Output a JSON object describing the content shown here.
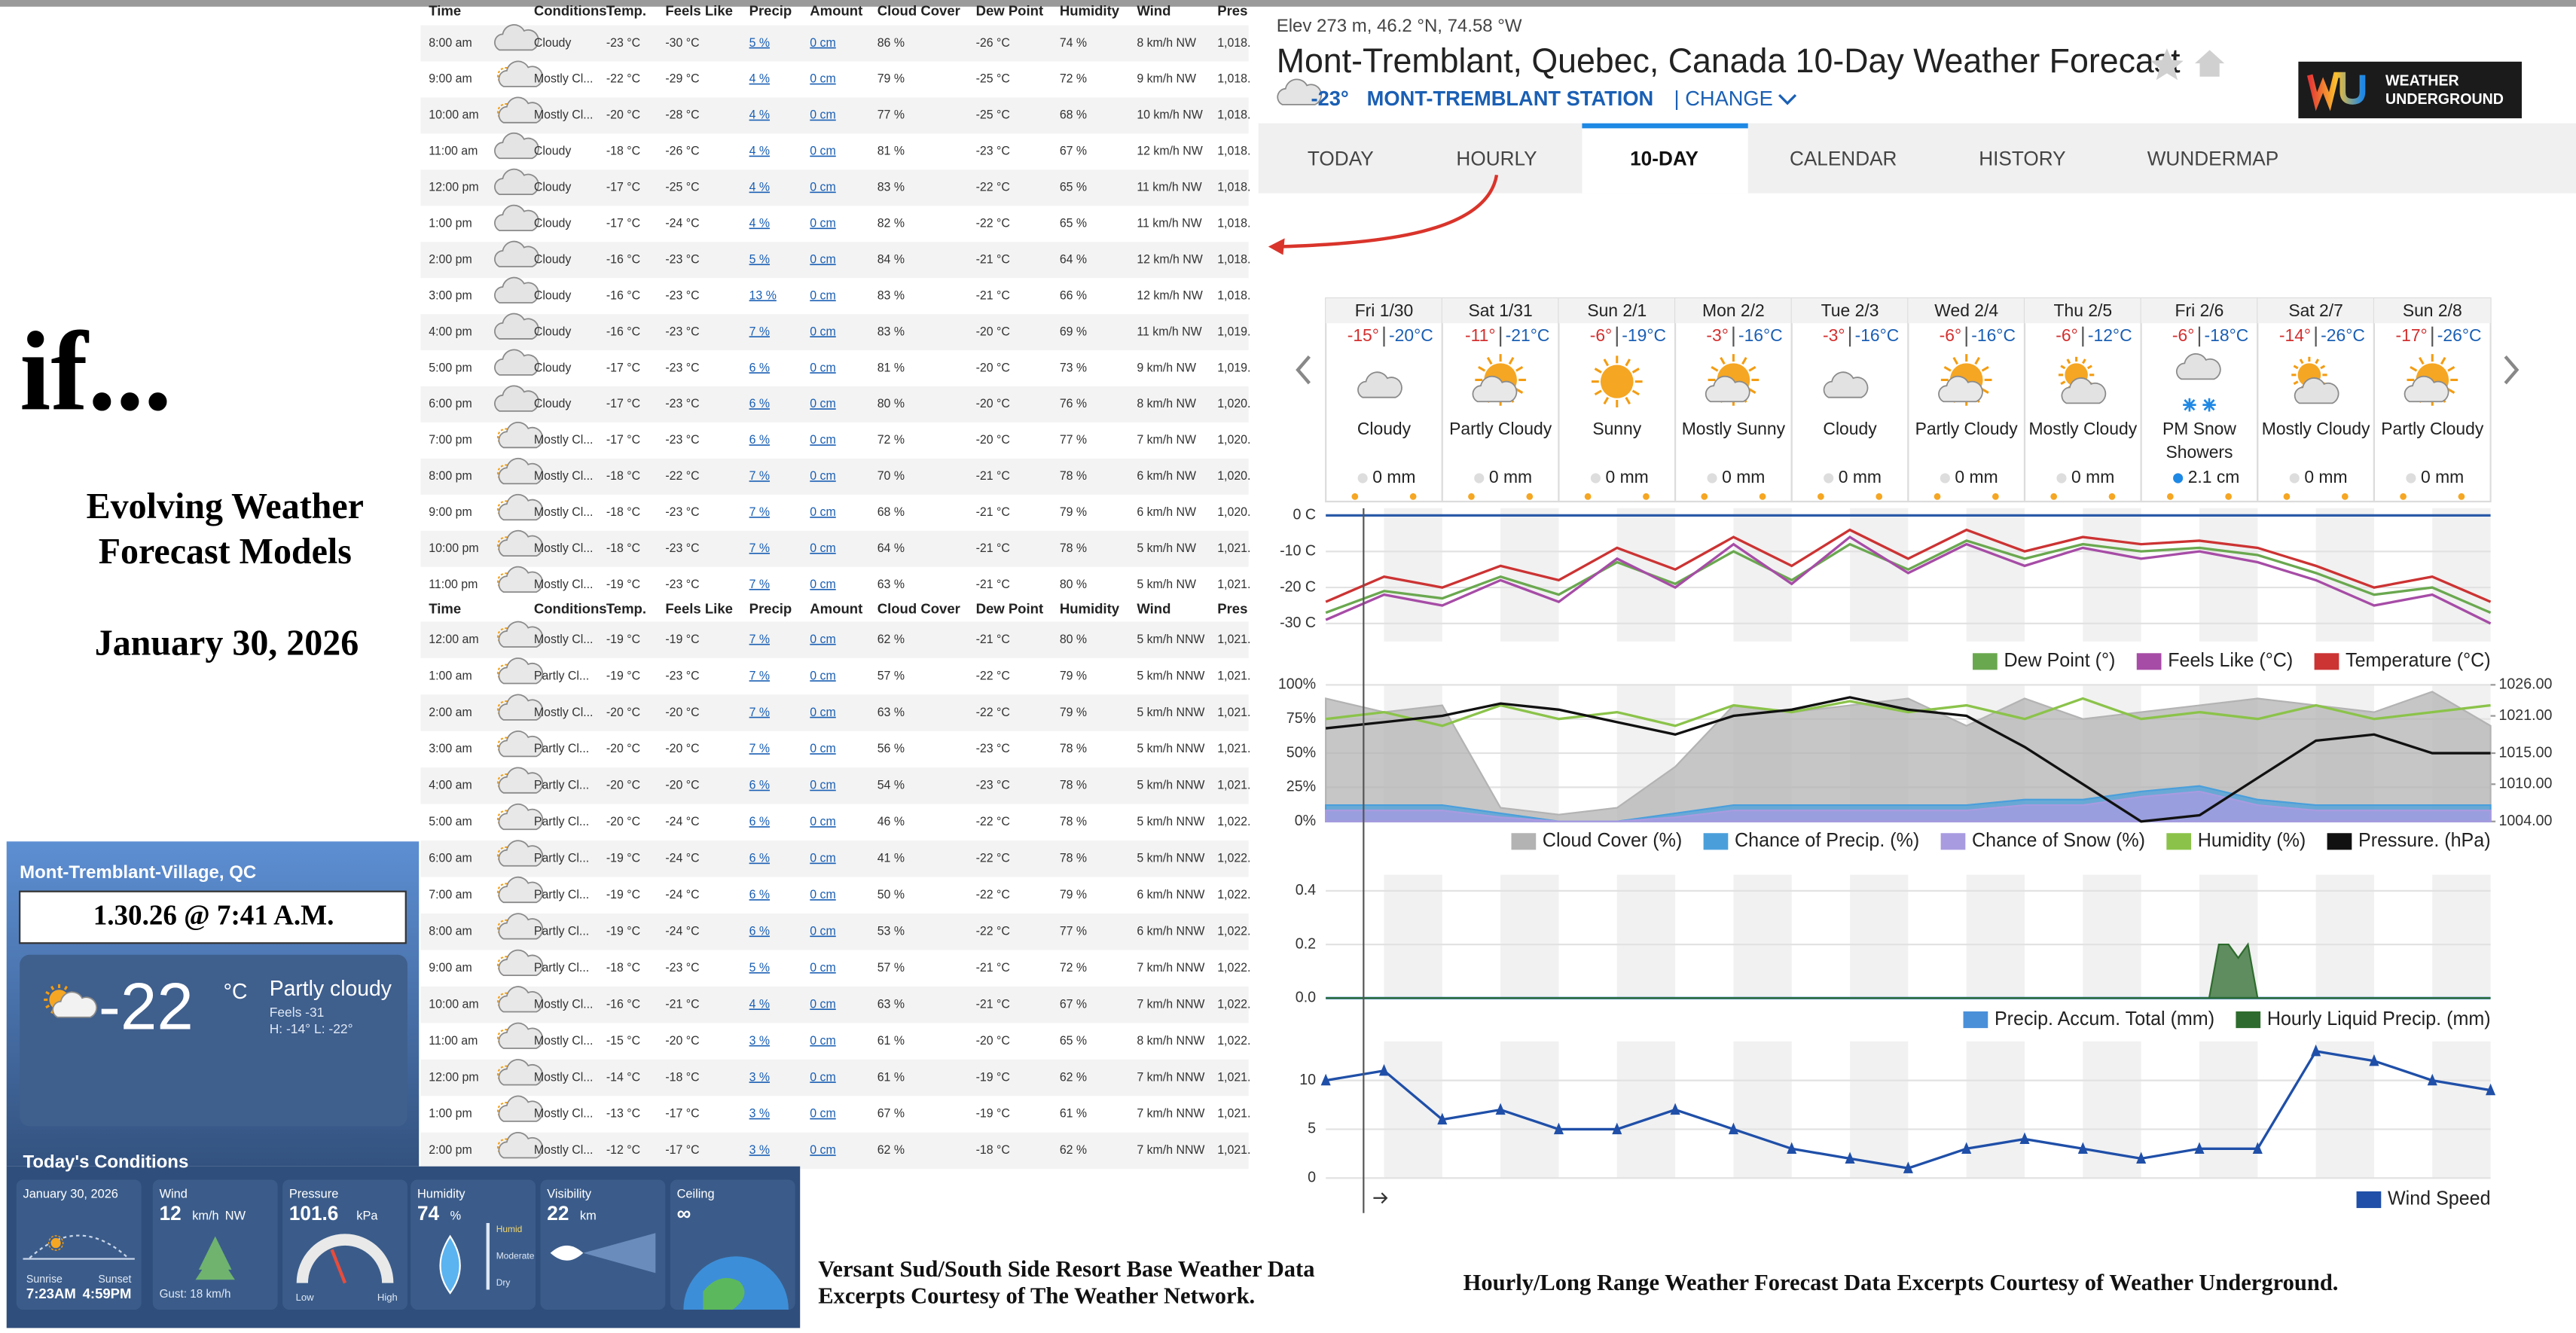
{
  "left": {
    "title": "if...",
    "subtitle": [
      "Evolving Weather",
      "Forecast Models"
    ],
    "date": "January 30, 2026"
  },
  "hourly_table": {
    "headers": [
      "Time",
      "Conditions",
      "Temp.",
      "Feels Like",
      "Precip",
      "Amount",
      "Cloud Cover",
      "Dew Point",
      "Humidity",
      "Wind",
      "Pres"
    ],
    "rows_1": [
      [
        "8:00 am",
        "Cloudy",
        "-23 °C",
        "-30 °C",
        "5 %",
        "0 cm",
        "86 %",
        "-26 °C",
        "74 %",
        "8 km/h NW",
        "1,018."
      ],
      [
        "9:00 am",
        "Mostly Cl...",
        "-22 °C",
        "-29 °C",
        "4 %",
        "0 cm",
        "79 %",
        "-25 °C",
        "72 %",
        "9 km/h NW",
        "1,018."
      ],
      [
        "10:00 am",
        "Mostly Cl...",
        "-20 °C",
        "-28 °C",
        "4 %",
        "0 cm",
        "77 %",
        "-25 °C",
        "68 %",
        "10 km/h NW",
        "1,018."
      ],
      [
        "11:00 am",
        "Cloudy",
        "-18 °C",
        "-26 °C",
        "4 %",
        "0 cm",
        "81 %",
        "-23 °C",
        "67 %",
        "12 km/h NW",
        "1,018."
      ],
      [
        "12:00 pm",
        "Cloudy",
        "-17 °C",
        "-25 °C",
        "4 %",
        "0 cm",
        "83 %",
        "-22 °C",
        "65 %",
        "11 km/h NW",
        "1,018."
      ],
      [
        "1:00 pm",
        "Cloudy",
        "-17 °C",
        "-24 °C",
        "4 %",
        "0 cm",
        "82 %",
        "-22 °C",
        "65 %",
        "11 km/h NW",
        "1,018."
      ],
      [
        "2:00 pm",
        "Cloudy",
        "-16 °C",
        "-23 °C",
        "5 %",
        "0 cm",
        "84 %",
        "-21 °C",
        "64 %",
        "12 km/h NW",
        "1,018."
      ],
      [
        "3:00 pm",
        "Cloudy",
        "-16 °C",
        "-23 °C",
        "13 %",
        "0 cm",
        "83 %",
        "-21 °C",
        "66 %",
        "12 km/h NW",
        "1,018."
      ],
      [
        "4:00 pm",
        "Cloudy",
        "-16 °C",
        "-23 °C",
        "7 %",
        "0 cm",
        "83 %",
        "-20 °C",
        "69 %",
        "11 km/h NW",
        "1,019."
      ],
      [
        "5:00 pm",
        "Cloudy",
        "-17 °C",
        "-23 °C",
        "6 %",
        "0 cm",
        "81 %",
        "-20 °C",
        "73 %",
        "9 km/h NW",
        "1,019."
      ],
      [
        "6:00 pm",
        "Cloudy",
        "-17 °C",
        "-23 °C",
        "6 %",
        "0 cm",
        "80 %",
        "-20 °C",
        "76 %",
        "8 km/h NW",
        "1,020."
      ],
      [
        "7:00 pm",
        "Mostly Cl...",
        "-17 °C",
        "-23 °C",
        "6 %",
        "0 cm",
        "72 %",
        "-20 °C",
        "77 %",
        "7 km/h NW",
        "1,020."
      ],
      [
        "8:00 pm",
        "Mostly Cl...",
        "-18 °C",
        "-22 °C",
        "7 %",
        "0 cm",
        "70 %",
        "-21 °C",
        "78 %",
        "6 km/h NW",
        "1,020."
      ],
      [
        "9:00 pm",
        "Mostly Cl...",
        "-18 °C",
        "-23 °C",
        "7 %",
        "0 cm",
        "68 %",
        "-21 °C",
        "79 %",
        "6 km/h NW",
        "1,020."
      ],
      [
        "10:00 pm",
        "Mostly Cl...",
        "-18 °C",
        "-23 °C",
        "7 %",
        "0 cm",
        "64 %",
        "-21 °C",
        "78 %",
        "5 km/h NW",
        "1,021."
      ],
      [
        "11:00 pm",
        "Mostly Cl...",
        "-19 °C",
        "-23 °C",
        "7 %",
        "0 cm",
        "63 %",
        "-21 °C",
        "80 %",
        "5 km/h NW",
        "1,021."
      ]
    ],
    "rows_2": [
      [
        "12:00 am",
        "Mostly Cl...",
        "-19 °C",
        "-19 °C",
        "7 %",
        "0 cm",
        "62 %",
        "-21 °C",
        "80 %",
        "5 km/h NNW",
        "1,021."
      ],
      [
        "1:00 am",
        "Partly Cl...",
        "-19 °C",
        "-23 °C",
        "7 %",
        "0 cm",
        "57 %",
        "-22 °C",
        "79 %",
        "5 km/h NNW",
        "1,021."
      ],
      [
        "2:00 am",
        "Mostly Cl...",
        "-20 °C",
        "-20 °C",
        "7 %",
        "0 cm",
        "63 %",
        "-22 °C",
        "79 %",
        "5 km/h NNW",
        "1,021."
      ],
      [
        "3:00 am",
        "Partly Cl...",
        "-20 °C",
        "-20 °C",
        "7 %",
        "0 cm",
        "56 %",
        "-23 °C",
        "78 %",
        "5 km/h NNW",
        "1,021."
      ],
      [
        "4:00 am",
        "Partly Cl...",
        "-20 °C",
        "-20 °C",
        "6 %",
        "0 cm",
        "54 %",
        "-23 °C",
        "78 %",
        "5 km/h NNW",
        "1,021."
      ],
      [
        "5:00 am",
        "Partly Cl...",
        "-20 °C",
        "-24 °C",
        "6 %",
        "0 cm",
        "46 %",
        "-22 °C",
        "78 %",
        "5 km/h NNW",
        "1,022."
      ],
      [
        "6:00 am",
        "Partly Cl...",
        "-19 °C",
        "-24 °C",
        "6 %",
        "0 cm",
        "41 %",
        "-22 °C",
        "78 %",
        "5 km/h NNW",
        "1,022."
      ],
      [
        "7:00 am",
        "Partly Cl...",
        "-19 °C",
        "-24 °C",
        "6 %",
        "0 cm",
        "50 %",
        "-22 °C",
        "79 %",
        "6 km/h NNW",
        "1,022."
      ],
      [
        "8:00 am",
        "Partly Cl...",
        "-19 °C",
        "-24 °C",
        "6 %",
        "0 cm",
        "53 %",
        "-22 °C",
        "77 %",
        "6 km/h NNW",
        "1,022."
      ],
      [
        "9:00 am",
        "Partly Cl...",
        "-18 °C",
        "-23 °C",
        "5 %",
        "0 cm",
        "57 %",
        "-21 °C",
        "72 %",
        "7 km/h NNW",
        "1,022."
      ],
      [
        "10:00 am",
        "Mostly Cl...",
        "-16 °C",
        "-21 °C",
        "4 %",
        "0 cm",
        "63 %",
        "-21 °C",
        "67 %",
        "7 km/h NNW",
        "1,022."
      ],
      [
        "11:00 am",
        "Mostly Cl...",
        "-15 °C",
        "-20 °C",
        "3 %",
        "0 cm",
        "61 %",
        "-20 °C",
        "65 %",
        "8 km/h NNW",
        "1,022."
      ],
      [
        "12:00 pm",
        "Mostly Cl...",
        "-14 °C",
        "-18 °C",
        "3 %",
        "0 cm",
        "61 %",
        "-19 °C",
        "62 %",
        "7 km/h NNW",
        "1,021."
      ],
      [
        "1:00 pm",
        "Mostly Cl...",
        "-13 °C",
        "-17 °C",
        "3 %",
        "0 cm",
        "67 %",
        "-19 °C",
        "61 %",
        "7 km/h NNW",
        "1,021."
      ],
      [
        "2:00 pm",
        "Mostly Cl...",
        "-12 °C",
        "-17 °C",
        "3 %",
        "0 cm",
        "62 %",
        "-18 °C",
        "62 %",
        "7 km/h NNW",
        "1,021."
      ]
    ]
  },
  "twn": {
    "location": "Mont-Tremblant-Village, QC",
    "timestamp": "1.30.26 @ 7:41 A.M.",
    "temp": "-22",
    "unit": "°C",
    "condition": "Partly cloudy",
    "feels": "Feels -31",
    "hilo": "H: -14°   L: -22°",
    "section": "Today's Conditions",
    "cards": [
      {
        "title": "January 30, 2026",
        "sunrise_label": "Sunrise",
        "sunrise": "7:23AM",
        "sunset_label": "Sunset",
        "sunset": "4:59PM"
      },
      {
        "title": "Wind",
        "value": "12",
        "unit": "km/h",
        "dir": "NW",
        "note": "Gust: 18 km/h"
      },
      {
        "title": "Pressure",
        "value": "101.6",
        "unit": "kPa",
        "low": "Low",
        "high": "High"
      },
      {
        "title": "Humidity",
        "value": "74",
        "unit": "%",
        "scale": [
          "Humid",
          "Moderate",
          "Dry"
        ]
      },
      {
        "title": "Visibility",
        "value": "22",
        "unit": "km"
      },
      {
        "title": "Ceiling",
        "value": "∞"
      }
    ]
  },
  "captions": {
    "twn": [
      "Versant Sud/South Side Resort Base Weather Data",
      "Excerpts Courtesy of The Weather Network."
    ],
    "wu": "Hourly/Long Range Weather Forecast Data Excerpts Courtesy of Weather Underground."
  },
  "wu": {
    "elevation": "Elev 273 m, 46.2 °N, 74.58 °W",
    "title": "Mont-Tremblant, Quebec, Canada 10-Day Weather Forecast",
    "current_temp": "-23°",
    "station": "MONT-TREMBLANT STATION",
    "change": "| CHANGE",
    "logo": [
      "WEATHER",
      "UNDERGROUND"
    ],
    "tabs": [
      "TODAY",
      "HOURLY",
      "10-DAY",
      "CALENDAR",
      "HISTORY",
      "WUNDERMAP"
    ],
    "active_tab": 2,
    "days": [
      {
        "date": "Fri 1/30",
        "high": "-15°",
        "low": "-20°C",
        "condition": "Cloudy",
        "precip": "0 mm"
      },
      {
        "date": "Sat 1/31",
        "high": "-11°",
        "low": "-21°C",
        "condition": "Partly Cloudy",
        "precip": "0 mm"
      },
      {
        "date": "Sun 2/1",
        "high": "-6°",
        "low": "-19°C",
        "condition": "Sunny",
        "precip": "0 mm"
      },
      {
        "date": "Mon 2/2",
        "high": "-3°",
        "low": "-16°C",
        "condition": "Mostly Sunny",
        "precip": "0 mm"
      },
      {
        "date": "Tue 2/3",
        "high": "-3°",
        "low": "-16°C",
        "condition": "Cloudy",
        "precip": "0 mm"
      },
      {
        "date": "Wed 2/4",
        "high": "-6°",
        "low": "-16°C",
        "condition": "Partly Cloudy",
        "precip": "0 mm"
      },
      {
        "date": "Thu 2/5",
        "high": "-6°",
        "low": "-12°C",
        "condition": "Mostly Cloudy",
        "precip": "0 mm"
      },
      {
        "date": "Fri 2/6",
        "high": "-6°",
        "low": "-18°C",
        "condition": "PM Snow Showers",
        "precip": "2.1 cm"
      },
      {
        "date": "Sat 2/7",
        "high": "-14°",
        "low": "-26°C",
        "condition": "Mostly Cloudy",
        "precip": "0 mm"
      },
      {
        "date": "Sun 2/8",
        "high": "-17°",
        "low": "-26°C",
        "condition": "Partly Cloudy",
        "precip": "0 mm"
      }
    ],
    "charts": [
      {
        "type": "line",
        "xlim": [
          0,
          240
        ],
        "ylim": [
          -35,
          2
        ],
        "yticks": [
          {
            "value": 0,
            "label": "0 C"
          },
          {
            "value": -10,
            "label": "-10 C"
          },
          {
            "value": -20,
            "label": "-20 C"
          },
          {
            "value": -30,
            "label": "-30 C"
          }
        ],
        "x": [
          0,
          12,
          24,
          36,
          48,
          60,
          72,
          84,
          96,
          108,
          120,
          132,
          144,
          156,
          168,
          180,
          192,
          204,
          216,
          228,
          240
        ],
        "series": [
          {
            "name": "Dew Point (°)",
            "color": "#6aa84f",
            "values": [
              -27,
              -21,
              -23,
              -17,
              -22,
              -13,
              -19,
              -10,
              -18,
              -8,
              -15,
              -7,
              -12,
              -8,
              -10,
              -9,
              -11,
              -16,
              -22,
              -20,
              -27
            ]
          },
          {
            "name": "Feels Like (°C)",
            "color": "#a64ca6",
            "values": [
              -29,
              -22,
              -25,
              -18,
              -24,
              -12,
              -20,
              -8,
              -19,
              -6,
              -16,
              -8,
              -14,
              -9,
              -12,
              -10,
              -13,
              -18,
              -25,
              -22,
              -30
            ]
          },
          {
            "name": "Temperature (°C)",
            "color": "#cc3333",
            "values": [
              -24,
              -17,
              -20,
              -14,
              -18,
              -9,
              -15,
              -6,
              -14,
              -4,
              -12,
              -4,
              -10,
              -6,
              -8,
              -7,
              -9,
              -14,
              -20,
              -17,
              -24
            ]
          }
        ]
      },
      {
        "type": "line",
        "xlim": [
          0,
          240
        ],
        "ylim": [
          0,
          100
        ],
        "yticks": [
          {
            "value": 100,
            "label": "100%"
          },
          {
            "value": 75,
            "label": "75%"
          },
          {
            "value": 50,
            "label": "50%"
          },
          {
            "value": 25,
            "label": "25%"
          },
          {
            "value": 0,
            "label": "0%"
          }
        ],
        "y2lim": [
          1004,
          1026
        ],
        "y2ticks": [
          {
            "value": 1026,
            "label": "1026.00"
          },
          {
            "value": 1021,
            "label": "1021.00"
          },
          {
            "value": 1015,
            "label": "1015.00"
          },
          {
            "value": 1010,
            "label": "1010.00"
          },
          {
            "value": 1004,
            "label": "1004.00"
          }
        ],
        "x": [
          0,
          12,
          24,
          36,
          48,
          60,
          72,
          84,
          96,
          108,
          120,
          132,
          144,
          156,
          168,
          180,
          192,
          204,
          216,
          228,
          240
        ],
        "series": [
          {
            "name": "Cloud Cover (%)",
            "color": "#b3b3b3",
            "style": "area",
            "values": [
              90,
              80,
              85,
              10,
              5,
              10,
              40,
              85,
              80,
              85,
              90,
              70,
              90,
              75,
              80,
              85,
              90,
              85,
              80,
              95,
              70
            ]
          },
          {
            "name": "Chance of Precip. (%)",
            "color": "#4a9fdb",
            "style": "area",
            "values": [
              12,
              12,
              12,
              6,
              0,
              0,
              6,
              12,
              12,
              12,
              12,
              12,
              16,
              16,
              22,
              26,
              16,
              12,
              12,
              12,
              12
            ]
          },
          {
            "name": "Chance of Snow (%)",
            "color": "#a99be0",
            "style": "area",
            "values": [
              8,
              8,
              8,
              3,
              0,
              0,
              3,
              8,
              8,
              8,
              8,
              8,
              12,
              12,
              18,
              22,
              12,
              8,
              8,
              8,
              8
            ]
          },
          {
            "name": "Humidity (%)",
            "color": "#8bc34a",
            "values": [
              75,
              80,
              70,
              85,
              75,
              80,
              70,
              85,
              80,
              88,
              80,
              85,
              75,
              90,
              75,
              80,
              75,
              85,
              75,
              80,
              85
            ]
          },
          {
            "name": "Pressure. (hPa)",
            "color": "#111111",
            "axis": "y2",
            "values": [
              1019,
              1020,
              1021,
              1023,
              1022,
              1020,
              1018,
              1021,
              1022,
              1024,
              1022,
              1021,
              1016,
              1010,
              1004,
              1005,
              1011,
              1017,
              1018,
              1015,
              1015
            ]
          }
        ]
      },
      {
        "type": "line",
        "xlim": [
          0,
          240
        ],
        "ylim": [
          0,
          0.46
        ],
        "yticks": [
          {
            "value": 0.4,
            "label": "0.4"
          },
          {
            "value": 0.2,
            "label": "0.2"
          },
          {
            "value": 0,
            "label": "0.0"
          }
        ],
        "series": [
          {
            "name": "Precip. Accum. Total (mm)",
            "color": "#4a90d9",
            "x": [
              0,
              240
            ],
            "values": [
              0,
              0
            ]
          },
          {
            "name": "Hourly Liquid Precip. (mm)",
            "color": "#2e6b2e",
            "style": "area",
            "x": [
              0,
              182,
              184,
              186,
              188,
              190,
              192,
              240
            ],
            "values": [
              0,
              0,
              0.2,
              0.2,
              0.15,
              0.2,
              0,
              0
            ]
          }
        ]
      },
      {
        "type": "line",
        "xlim": [
          0,
          240
        ],
        "ylim": [
          0,
          14
        ],
        "yticks": [
          0,
          5,
          10
        ],
        "x": [
          0,
          12,
          24,
          36,
          48,
          60,
          72,
          84,
          96,
          108,
          120,
          132,
          144,
          156,
          168,
          180,
          192,
          204,
          216,
          228,
          240
        ],
        "series": [
          {
            "name": "Wind Speed",
            "color": "#1f4fa8",
            "markers": true,
            "values": [
              10,
              11,
              6,
              7,
              5,
              5,
              7,
              5,
              3,
              2,
              1,
              3,
              4,
              3,
              2,
              3,
              3,
              13,
              12,
              10,
              9
            ]
          }
        ]
      }
    ]
  }
}
